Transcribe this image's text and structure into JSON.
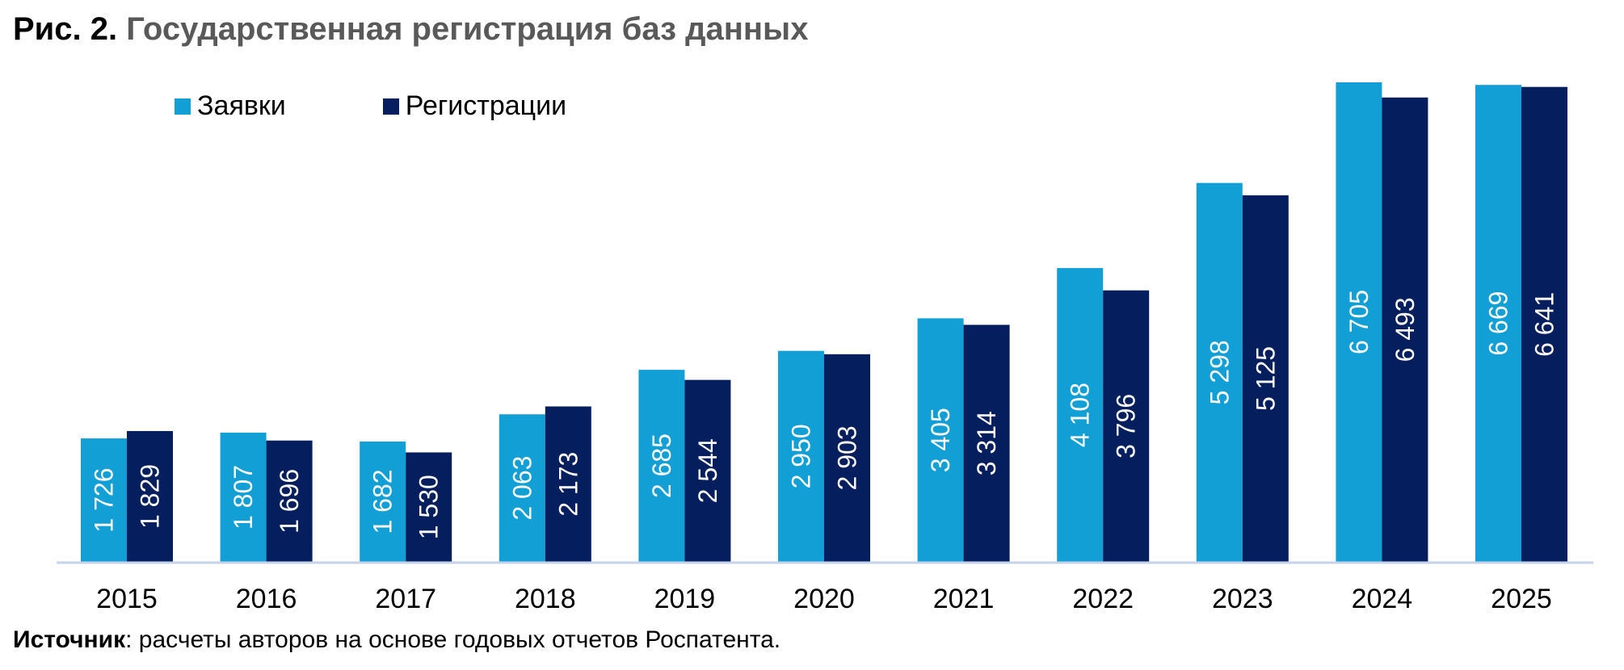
{
  "title": {
    "lead": "Рис. 2.",
    "main": "Государственная регистрация баз данных"
  },
  "source": {
    "label": "Источник",
    "text": ": расчеты авторов на основе годовых отчетов Роспатента."
  },
  "colors": {
    "applications": "#129fd6",
    "registrations": "#051e5e",
    "axis": "#c7d3ea",
    "label": "#ffffff"
  },
  "chart_data": {
    "type": "bar",
    "categories": [
      "2015",
      "2016",
      "2017",
      "2018",
      "2019",
      "2020",
      "2021",
      "2022",
      "2023",
      "2024",
      "2025"
    ],
    "series": [
      {
        "name": "Заявки",
        "values": [
          1726,
          1807,
          1682,
          2063,
          2685,
          2950,
          3405,
          4108,
          5298,
          6705,
          6669
        ]
      },
      {
        "name": "Регистрации",
        "values": [
          1829,
          1696,
          1530,
          2173,
          2544,
          2903,
          3314,
          3796,
          5125,
          6493,
          6641
        ]
      }
    ],
    "value_labels": {
      "Заявки": [
        "1 726",
        "1 807",
        "1 682",
        "2 063",
        "2 685",
        "2 950",
        "3 405",
        "4 108",
        "5 298",
        "6 705",
        "6 669"
      ],
      "Регистрации": [
        "1 829",
        "1 696",
        "1 530",
        "2 173",
        "2 544",
        "2 903",
        "3 314",
        "3 796",
        "5 125",
        "6 493",
        "6 641"
      ]
    },
    "ylim": [
      0,
      6705
    ],
    "legend": "top-left",
    "grid": false
  }
}
